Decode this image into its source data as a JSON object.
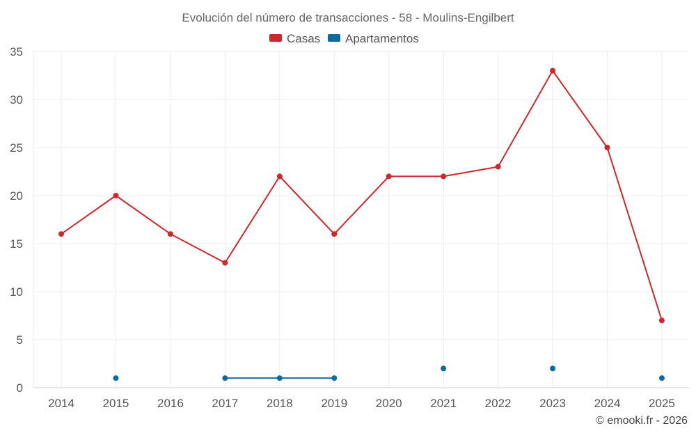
{
  "chart_data": {
    "type": "line",
    "title": "Evolución del número de transacciones - 58 - Moulins-Engilbert",
    "categories": [
      "2014",
      "2015",
      "2016",
      "2017",
      "2018",
      "2019",
      "2020",
      "2021",
      "2022",
      "2023",
      "2024",
      "2025"
    ],
    "yticks": [
      "0",
      "5",
      "10",
      "15",
      "20",
      "25",
      "30",
      "35"
    ],
    "ylim": [
      0,
      35
    ],
    "xlabel": "",
    "ylabel": "",
    "grid": true,
    "legend_position": "top-center",
    "series": [
      {
        "name": "Casas",
        "color": "#d0262b",
        "values": [
          16,
          20,
          16,
          13,
          22,
          16,
          22,
          22,
          23,
          33,
          25,
          7
        ]
      },
      {
        "name": "Apartamentos",
        "color": "#0b6aa0",
        "values": [
          null,
          1,
          null,
          1,
          1,
          1,
          null,
          2,
          null,
          2,
          null,
          1
        ]
      }
    ]
  },
  "credit": "© emooki.fr - 2026"
}
